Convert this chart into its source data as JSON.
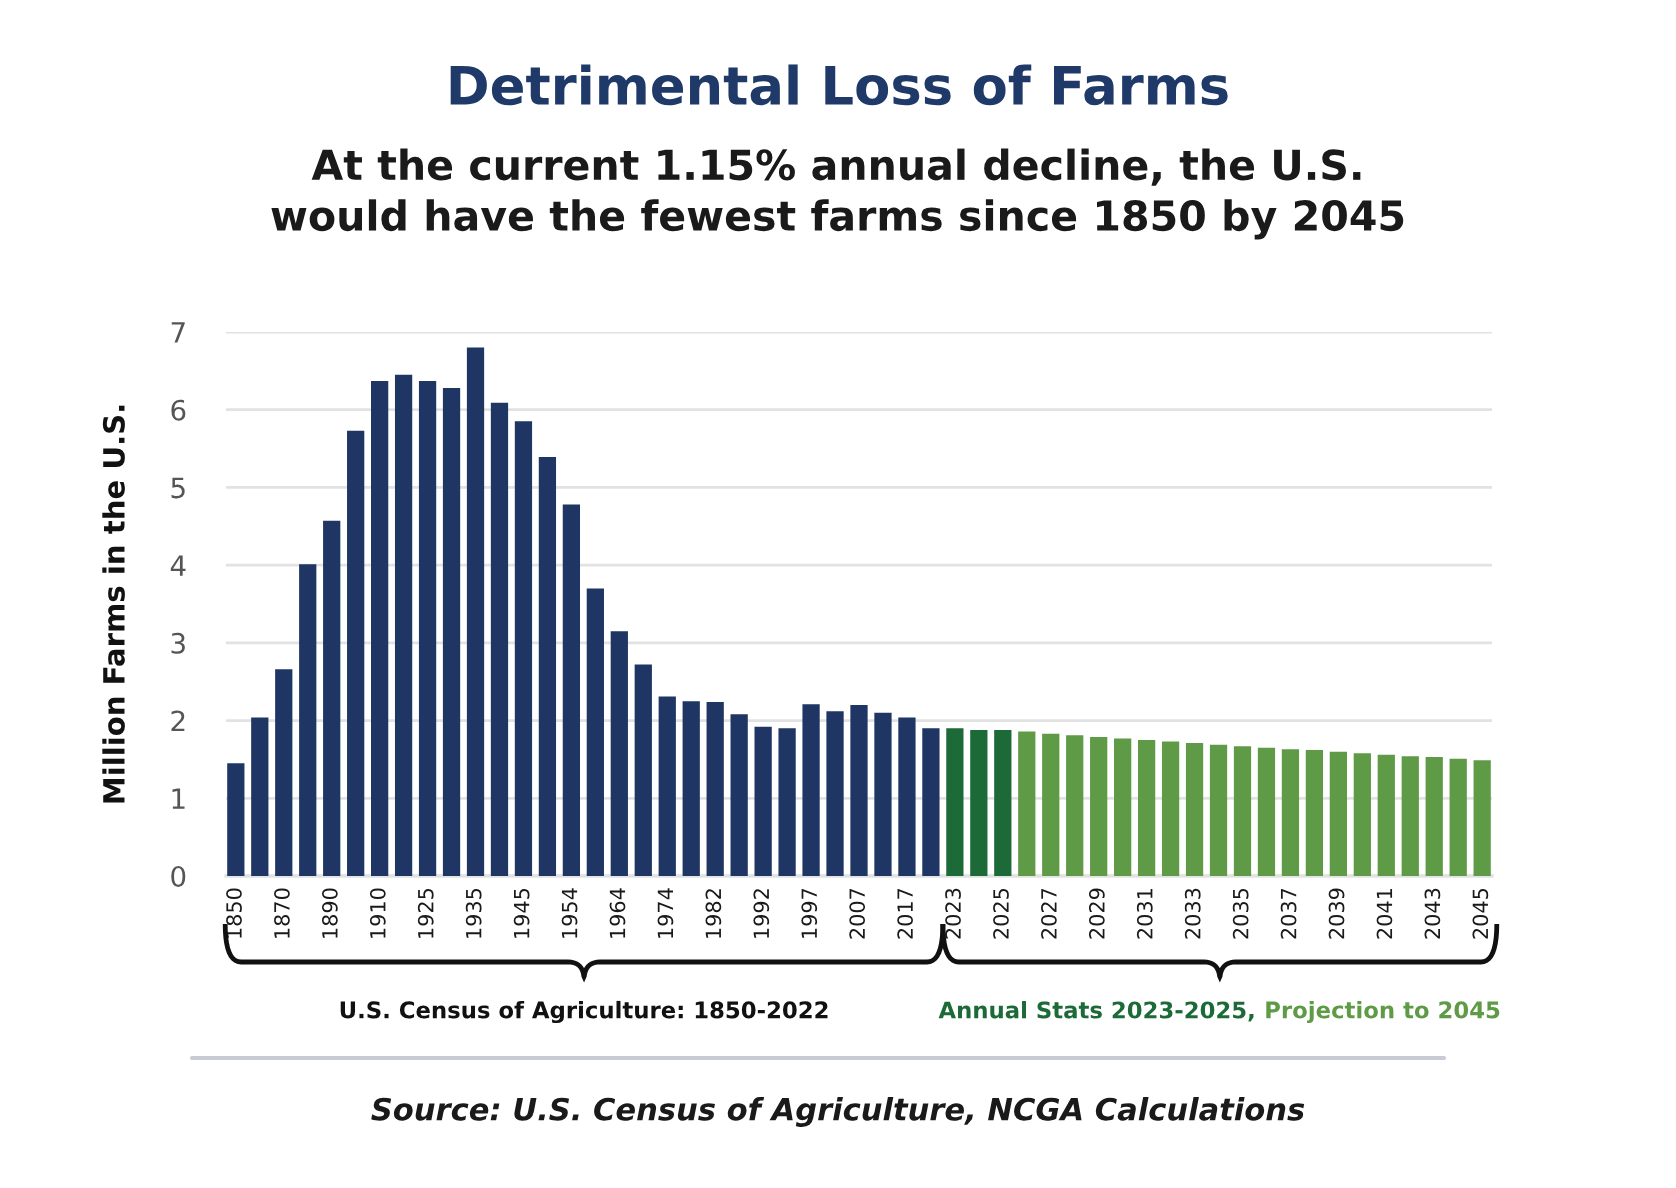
{
  "chart_data": {
    "type": "bar",
    "title": "Detrimental Loss of Farms",
    "subtitle": "At the current 1.15% annual decline, the U.S.\nwould have the fewest farms since 1850 by 2045",
    "ylabel": "Million Farms in the U.S.",
    "categories": [
      "1850",
      null,
      "1870",
      null,
      "1890",
      null,
      "1910",
      null,
      "1925",
      null,
      "1935",
      null,
      "1945",
      null,
      "1954",
      null,
      "1964",
      null,
      "1974",
      null,
      "1982",
      null,
      "1992",
      null,
      "1997",
      null,
      "2007",
      null,
      "2017",
      null,
      "2023",
      null,
      "2025",
      null,
      "2027",
      null,
      "2029",
      null,
      "2031",
      null,
      "2033",
      null,
      "2035",
      null,
      "2037",
      null,
      "2039",
      null,
      "2041",
      null,
      "2043",
      null,
      "2045"
    ],
    "series": [
      {
        "color": "#1f3563",
        "values": [
          1.45,
          2.04,
          2.66,
          4.01,
          4.57,
          5.73,
          6.37,
          6.45,
          6.37,
          6.28,
          6.8,
          6.09,
          5.85,
          5.39,
          4.78,
          3.7,
          3.15,
          2.72,
          2.31,
          2.25,
          2.24,
          2.08,
          1.92,
          1.9,
          2.21,
          2.12,
          2.2,
          2.1,
          2.04,
          1.9,
          null,
          null,
          null,
          null,
          null,
          null,
          null,
          null,
          null,
          null,
          null,
          null,
          null,
          null,
          null,
          null,
          null,
          null,
          null,
          null,
          null,
          null,
          null
        ]
      },
      {
        "color": "#1b6a37",
        "values": [
          null,
          null,
          null,
          null,
          null,
          null,
          null,
          null,
          null,
          null,
          null,
          null,
          null,
          null,
          null,
          null,
          null,
          null,
          null,
          null,
          null,
          null,
          null,
          null,
          null,
          null,
          null,
          null,
          null,
          null,
          1.9,
          1.88,
          1.88,
          null,
          null,
          null,
          null,
          null,
          null,
          null,
          null,
          null,
          null,
          null,
          null,
          null,
          null,
          null,
          null,
          null,
          null,
          null,
          null
        ]
      },
      {
        "color": "#5f9a46",
        "values": [
          null,
          null,
          null,
          null,
          null,
          null,
          null,
          null,
          null,
          null,
          null,
          null,
          null,
          null,
          null,
          null,
          null,
          null,
          null,
          null,
          null,
          null,
          null,
          null,
          null,
          null,
          null,
          null,
          null,
          null,
          null,
          null,
          null,
          1.86,
          1.83,
          1.81,
          1.79,
          1.77,
          1.75,
          1.73,
          1.71,
          1.69,
          1.67,
          1.65,
          1.63,
          1.62,
          1.6,
          1.58,
          1.56,
          1.54,
          1.53,
          1.51,
          1.49
        ]
      }
    ],
    "ylim": [
      0,
      7
    ],
    "yticks": [
      0,
      1,
      2,
      3,
      4,
      5,
      6,
      7
    ],
    "grid": "y",
    "annotations": [
      "U.S. Census of Agriculture: 1850-2022",
      "Annual Stats 2023-2025,",
      "Projection to 2045",
      "Source: U.S. Census of Agriculture, NCGA Calculations"
    ]
  }
}
